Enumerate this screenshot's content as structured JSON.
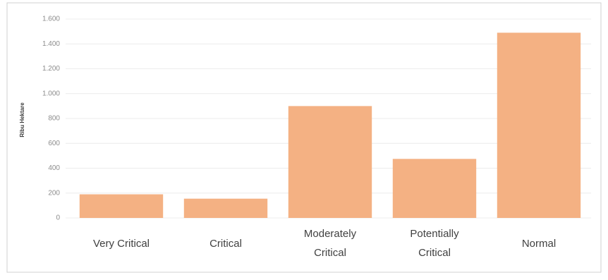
{
  "chart_data": {
    "type": "bar",
    "y_label": "Ribu Hektare",
    "categories": [
      "Very Critical",
      "Critical",
      "Moderately Critical",
      "Potentially Critical",
      "Normal"
    ],
    "values": [
      190,
      155,
      900,
      475,
      1490
    ],
    "color": "#f4b183",
    "ylim": [
      0,
      1600
    ],
    "yticks": [
      0,
      200,
      400,
      600,
      800,
      {
        "value": 1000,
        "label": "1.000"
      },
      {
        "value": 1200,
        "label": "1.200"
      },
      {
        "value": 1400,
        "label": "1.400"
      },
      {
        "value": 1600,
        "label": "1.600"
      }
    ],
    "grid": true
  }
}
